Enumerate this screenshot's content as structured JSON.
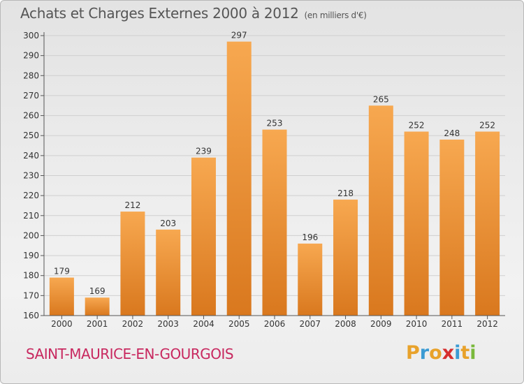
{
  "header": {
    "title": "Achats et Charges Externes 2000 à 2012",
    "subtitle": "(en milliers d'€)"
  },
  "footer": {
    "commune": "SAINT-MAURICE-EN-GOURGOIS",
    "logo": {
      "text": "Proxiti",
      "colors": [
        "#e8a22b",
        "#3b9bd3",
        "#e8a22b",
        "#d62e2e",
        "#3b9bd3",
        "#e8a22b",
        "#79b83b"
      ]
    }
  },
  "colors": {
    "bar_top": "#f7a850",
    "bar_bottom": "#d9781e",
    "grid": "#cfcfcf",
    "axis": "#555555",
    "text": "#333333",
    "commune": "#c8285f"
  },
  "chart_data": {
    "type": "bar",
    "title": "Achats et Charges Externes 2000 à 2012",
    "subtitle": "(en milliers d'€)",
    "categories": [
      "2000",
      "2001",
      "2002",
      "2003",
      "2004",
      "2005",
      "2006",
      "2007",
      "2008",
      "2009",
      "2010",
      "2011",
      "2012"
    ],
    "values": [
      179,
      169,
      212,
      203,
      239,
      297,
      253,
      196,
      218,
      265,
      252,
      248,
      252
    ],
    "ylim": [
      160,
      300
    ],
    "yticks": [
      160,
      170,
      180,
      190,
      200,
      210,
      220,
      230,
      240,
      250,
      260,
      270,
      280,
      290,
      300
    ],
    "grid": true,
    "data_labels": true
  }
}
